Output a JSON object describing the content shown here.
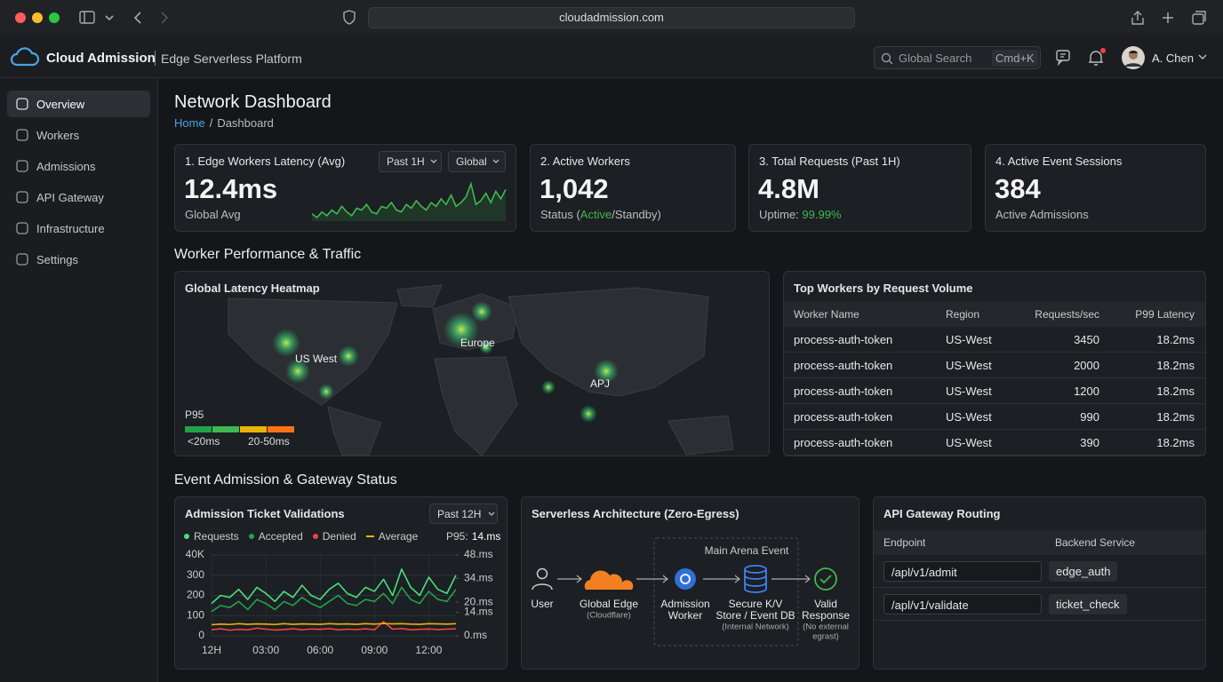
{
  "browser": {
    "url": "cloudadmission.com"
  },
  "header": {
    "brand": "Cloud Admission",
    "product": "Edge Serverless Platform",
    "search": "Global Search",
    "shortcut": "Cmd+K",
    "user": "A. Chen"
  },
  "sidebar": {
    "items": [
      "Overview",
      "Workers",
      "Admissions",
      "API Gateway",
      "Infrastructure",
      "Settings"
    ]
  },
  "page": {
    "title": "Network Dashboard",
    "breadcrumb": [
      "Home",
      "Dashboard"
    ],
    "separator": "/"
  },
  "sections": [
    "Worker Performance & Traffic",
    "Event Admission & Gateway Status"
  ],
  "kpis": [
    {
      "title": "1. Edge Workers Latency (Avg)",
      "value": "12.4ms",
      "caption": [
        "Global Avg"
      ],
      "filters": [
        "Past 1H",
        "Global"
      ]
    },
    {
      "title": "2. Active Workers",
      "value": "1,042",
      "caption": [
        "Status (",
        "Active",
        "/Standby)"
      ]
    },
    {
      "title": "3. Total Requests (Past 1H)",
      "value": "4.8M",
      "caption": [
        "Uptime: ",
        "99.99%"
      ]
    },
    {
      "title": "4. Active Event Sessions",
      "value": "384",
      "caption": [
        "Active Admissions"
      ]
    }
  ],
  "chart_data": [
    {
      "type": "line",
      "color": "#3fb950",
      "values": [
        14,
        12,
        15,
        13,
        16,
        14,
        18,
        15,
        13,
        17,
        16,
        19,
        15,
        14,
        18,
        17,
        20,
        16,
        15,
        19,
        17,
        21,
        18,
        16,
        20,
        18,
        22,
        19,
        24,
        18,
        20,
        23,
        30,
        19,
        21,
        25,
        20,
        26,
        22,
        27
      ]
    },
    {
      "type": "line",
      "title": "Admission Ticket Validations",
      "filter": "Past 12H",
      "x": [
        0,
        0.5,
        1,
        1.5,
        2,
        2.5,
        3,
        3.5,
        4,
        4.5,
        5,
        5.5,
        6,
        6.5,
        7,
        7.5,
        8,
        8.5,
        9,
        9.5,
        10,
        10.5,
        11,
        11.5,
        12,
        12.5,
        13,
        13.5
      ],
      "series": [
        {
          "name": "Requests",
          "color": "#4ade80",
          "legend_marker": "dot",
          "values": [
            160,
            200,
            190,
            230,
            180,
            240,
            210,
            170,
            220,
            190,
            250,
            200,
            180,
            230,
            260,
            210,
            190,
            240,
            220,
            280,
            200,
            330,
            240,
            200,
            290,
            230,
            210,
            300
          ]
        },
        {
          "name": "Accepted",
          "color": "#22a34a",
          "legend_marker": "dot",
          "values": [
            120,
            150,
            140,
            170,
            130,
            180,
            160,
            130,
            170,
            150,
            190,
            160,
            140,
            170,
            200,
            160,
            150,
            180,
            170,
            210,
            160,
            240,
            180,
            160,
            220,
            180,
            170,
            230
          ]
        },
        {
          "name": "Denied",
          "color": "#ef4444",
          "legend_marker": "dot",
          "values": [
            30,
            35,
            28,
            32,
            30,
            38,
            33,
            29,
            31,
            35,
            30,
            34,
            32,
            36,
            30,
            33,
            31,
            35,
            30,
            70,
            33,
            36,
            30,
            32,
            34,
            31,
            33,
            35
          ]
        },
        {
          "name": "Average",
          "color": "#eab308",
          "legend_marker": "dash",
          "values": [
            55,
            58,
            56,
            60,
            57,
            59,
            58,
            56,
            60,
            57,
            59,
            58,
            57,
            60,
            58,
            59,
            57,
            60,
            58,
            61,
            59,
            60,
            58,
            57,
            60,
            59,
            58,
            60
          ]
        }
      ],
      "annotation": {
        "label": "P95:",
        "value": "14.ms"
      },
      "xlim": [
        0,
        13.5
      ],
      "xticks": [
        {
          "value": 0,
          "label": "12H"
        },
        {
          "value": 3,
          "label": "03:00"
        },
        {
          "value": 6,
          "label": "06:00"
        },
        {
          "value": 9,
          "label": "09:00"
        },
        {
          "value": 12,
          "label": "12:00"
        }
      ],
      "ylim": [
        0,
        400
      ],
      "yticks": [
        0,
        100,
        200,
        300,
        {
          "value": 400,
          "label": "40K"
        }
      ],
      "y2lim": [
        0,
        48
      ],
      "y2ticks": [
        {
          "value": 0,
          "label": "0.ms"
        },
        {
          "value": 14,
          "label": "14.ms"
        },
        {
          "value": 20,
          "label": "20.ms"
        },
        {
          "value": 34,
          "label": "34.ms"
        },
        {
          "value": 48,
          "label": "48.ms"
        }
      ],
      "grid": true
    }
  ],
  "heatmap": {
    "title": "Global Latency Heatmap",
    "regions": [
      "US West",
      "Europe",
      "APJ"
    ],
    "legend": {
      "title": "P95",
      "labels": [
        "<20ms",
        "20-50ms"
      ]
    }
  },
  "top_workers": {
    "title": "Top Workers by Request Volume",
    "columns": [
      "Worker Name",
      "Region",
      "Requests/sec",
      "P99 Latency"
    ],
    "rows": [
      [
        "process-auth-token",
        "US-West",
        3450,
        "18.2ms"
      ],
      [
        "process-auth-token",
        "US-West",
        2000,
        "18.2ms"
      ],
      [
        "process-auth-token",
        "US-West",
        1200,
        "18.2ms"
      ],
      [
        "process-auth-token",
        "US-West",
        990,
        "18.2ms"
      ],
      [
        "process-auth-token",
        "US-West",
        390,
        "18.2ms"
      ]
    ]
  },
  "architecture": {
    "title": "Serverless Architecture (Zero-Egress)",
    "group": "Main Arena Event",
    "nodes": [
      {
        "label": [
          "User"
        ]
      },
      {
        "label": [
          "Global Edge"
        ],
        "sub": [
          "(Cloudflare)"
        ]
      },
      {
        "label": [
          "Admission",
          "Worker"
        ]
      },
      {
        "label": [
          "Secure K/V",
          "Store / Event DB"
        ],
        "sub": [
          "(Internal Network)"
        ]
      },
      {
        "label": [
          "Valid",
          "Response"
        ],
        "sub": [
          "(No external",
          "egrast)"
        ]
      }
    ]
  },
  "gateway": {
    "title": "API Gateway Routing",
    "columns": [
      "Endpoint",
      "Backend Service"
    ],
    "rows": [
      [
        "/apl/v1/admit",
        "edge_auth"
      ],
      [
        "/apl/v1/validate",
        "ticket_check"
      ]
    ]
  }
}
